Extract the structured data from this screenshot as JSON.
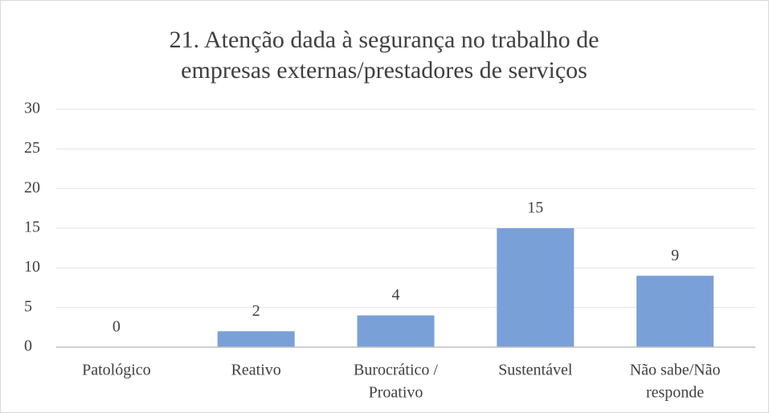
{
  "chart_data": {
    "type": "bar",
    "title": [
      "21. Atenção dada à segurança no trabalho de",
      "empresas externas/prestadores de serviços"
    ],
    "categories": [
      [
        "Patológico"
      ],
      [
        "Reativo"
      ],
      [
        "Burocrático /",
        "Proativo"
      ],
      [
        "Sustentável"
      ],
      [
        "Não sabe/Não",
        "responde"
      ]
    ],
    "values": [
      0,
      2,
      4,
      15,
      9
    ],
    "color": "#7aa0d8",
    "ylim": [
      0,
      30
    ],
    "yticks": [
      0,
      5,
      10,
      15,
      20,
      25,
      30
    ],
    "grid": true
  }
}
